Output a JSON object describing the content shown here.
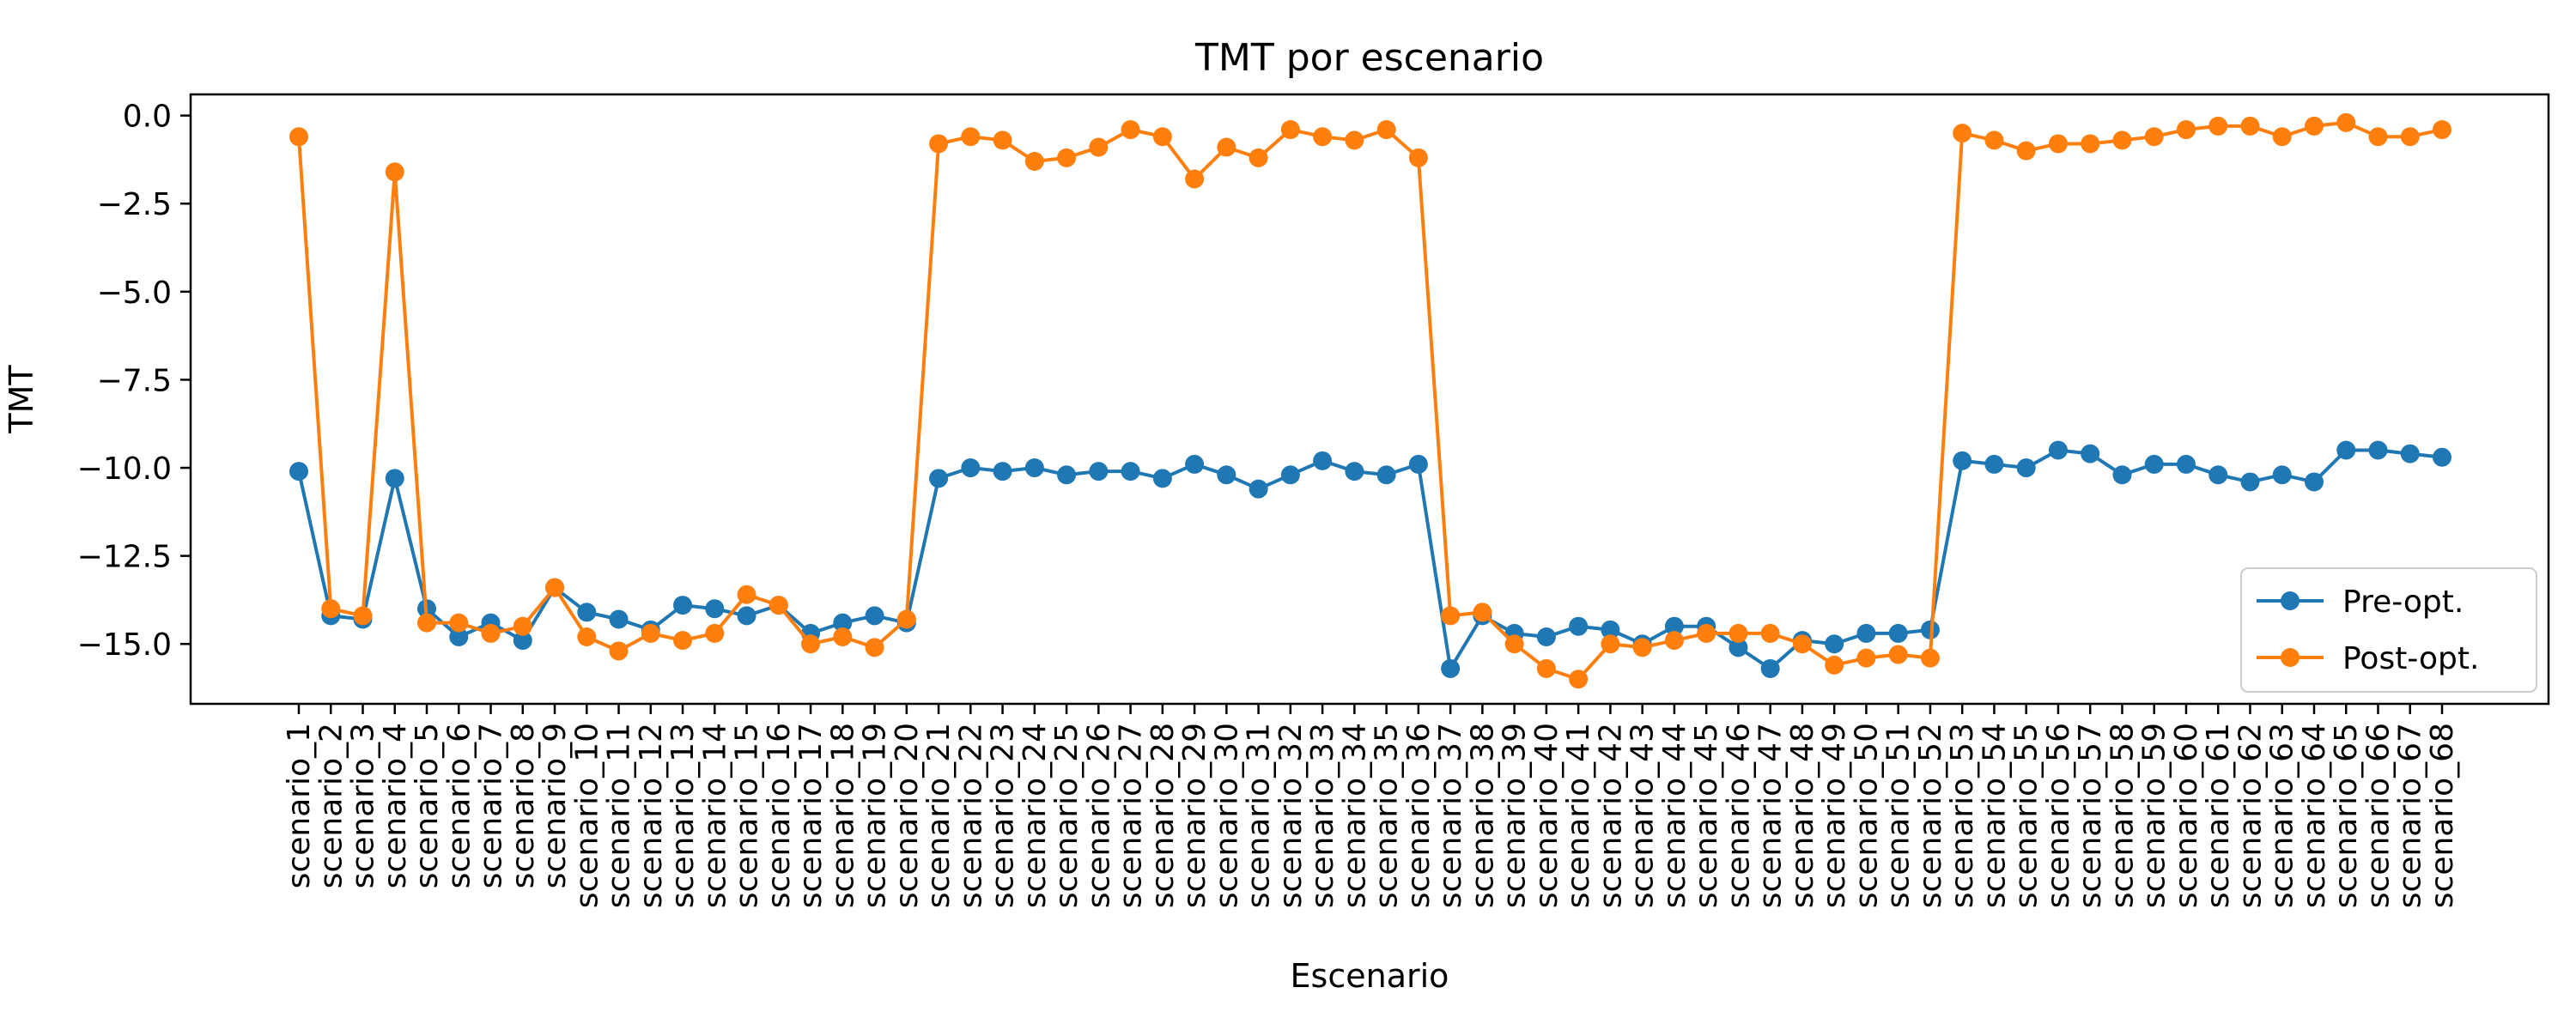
{
  "chart_data": {
    "type": "line",
    "title": "TMT por escenario",
    "xlabel": "Escenario",
    "ylabel": "TMT",
    "ylim": [
      -16.7,
      0.6
    ],
    "yticks": [
      0.0,
      -2.5,
      -5.0,
      -7.5,
      -10.0,
      -12.5,
      -15.0
    ],
    "ytick_labels": [
      "0.0",
      "−2.5",
      "−5.0",
      "−7.5",
      "−10.0",
      "−12.5",
      "−15.0"
    ],
    "grid": false,
    "legend_position": "lower-right",
    "categories": [
      "scenario_1",
      "scenario_2",
      "scenario_3",
      "scenario_4",
      "scenario_5",
      "scenario_6",
      "scenario_7",
      "scenario_8",
      "scenario_9",
      "scenario_10",
      "scenario_11",
      "scenario_12",
      "scenario_13",
      "scenario_14",
      "scenario_15",
      "scenario_16",
      "scenario_17",
      "scenario_18",
      "scenario_19",
      "scenario_20",
      "scenario_21",
      "scenario_22",
      "scenario_23",
      "scenario_24",
      "scenario_25",
      "scenario_26",
      "scenario_27",
      "scenario_28",
      "scenario_29",
      "scenario_30",
      "scenario_31",
      "scenario_32",
      "scenario_33",
      "scenario_34",
      "scenario_35",
      "scenario_36",
      "scenario_37",
      "scenario_38",
      "scenario_39",
      "scenario_40",
      "scenario_41",
      "scenario_42",
      "scenario_43",
      "scenario_44",
      "scenario_45",
      "scenario_46",
      "scenario_47",
      "scenario_48",
      "scenario_49",
      "scenario_50",
      "scenario_51",
      "scenario_52",
      "scenario_53",
      "scenario_54",
      "scenario_55",
      "scenario_56",
      "scenario_57",
      "scenario_58",
      "scenario_59",
      "scenario_60",
      "scenario_61",
      "scenario_62",
      "scenario_63",
      "scenario_64",
      "scenario_65",
      "scenario_66",
      "scenario_67",
      "scenario_68"
    ],
    "series": [
      {
        "name": "Pre-opt.",
        "color": "#1f77b4",
        "values": [
          -10.1,
          -14.2,
          -14.3,
          -10.3,
          -14.0,
          -14.8,
          -14.4,
          -14.9,
          -13.4,
          -14.1,
          -14.3,
          -14.6,
          -13.9,
          -14.0,
          -14.2,
          -13.9,
          -14.7,
          -14.4,
          -14.2,
          -14.4,
          -10.3,
          -10.0,
          -10.1,
          -10.0,
          -10.2,
          -10.1,
          -10.1,
          -10.3,
          -9.9,
          -10.2,
          -10.6,
          -10.2,
          -9.8,
          -10.1,
          -10.2,
          -9.9,
          -15.7,
          -14.2,
          -14.7,
          -14.8,
          -14.5,
          -14.6,
          -15.0,
          -14.5,
          -14.5,
          -15.1,
          -15.7,
          -14.9,
          -15.0,
          -14.7,
          -14.7,
          -14.6,
          -9.8,
          -9.9,
          -10.0,
          -9.5,
          -9.6,
          -10.2,
          -9.9,
          -9.9,
          -10.2,
          -10.4,
          -10.2,
          -10.4,
          -9.5,
          -9.5,
          -9.6,
          -9.7
        ]
      },
      {
        "name": "Post-opt.",
        "color": "#ff7f0e",
        "values": [
          -0.6,
          -14.0,
          -14.2,
          -1.6,
          -14.4,
          -14.4,
          -14.7,
          -14.5,
          -13.4,
          -14.8,
          -15.2,
          -14.7,
          -14.9,
          -14.7,
          -13.6,
          -13.9,
          -15.0,
          -14.8,
          -15.1,
          -14.3,
          -0.8,
          -0.6,
          -0.7,
          -1.3,
          -1.2,
          -0.9,
          -0.4,
          -0.6,
          -1.8,
          -0.9,
          -1.2,
          -0.4,
          -0.6,
          -0.7,
          -0.4,
          -1.2,
          -14.2,
          -14.1,
          -15.0,
          -15.7,
          -16.0,
          -15.0,
          -15.1,
          -14.9,
          -14.7,
          -14.7,
          -14.7,
          -15.0,
          -15.6,
          -15.4,
          -15.3,
          -15.4,
          -0.5,
          -0.7,
          -1.0,
          -0.8,
          -0.8,
          -0.7,
          -0.6,
          -0.4,
          -0.3,
          -0.3,
          -0.6,
          -0.3,
          -0.2,
          -0.6,
          -0.6,
          -0.4
        ]
      }
    ]
  }
}
